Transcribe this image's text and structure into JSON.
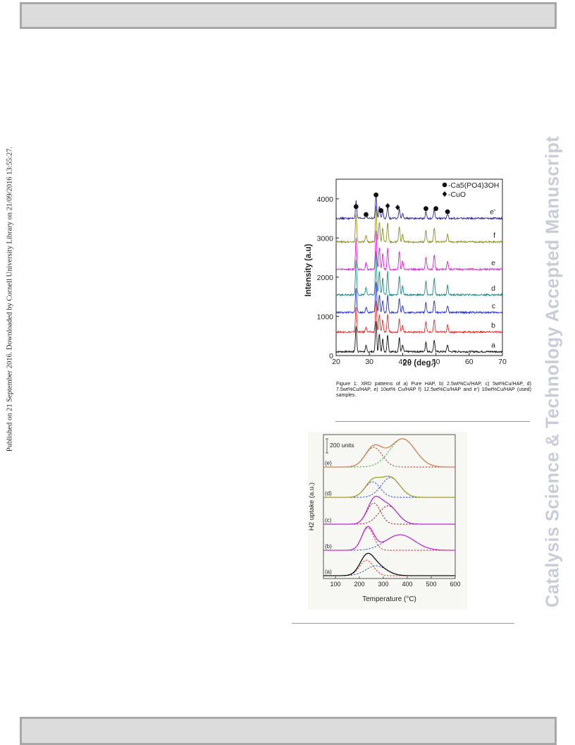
{
  "side_note": "Published on 21 September 2016. Downloaded by Cornell University Library on 21/09/2016 13:55:27.",
  "watermark": "Catalysis Science & Technology Accepted Manuscript",
  "figure1": {
    "caption": "Figure 1: XRD patterns of a) Pure HAP, b) 2.5wt%Cu/HAP, c) 5wt%Cu/HAP, d) 7.5wt%Cu/HAP, e) 10wt% Cu/HAP f) 12.5wt%Cu/HAP and e') 10wt%Cu/HAP (used) samples.",
    "legend": [
      "-Ca5(PO4)3OH",
      "-CuO"
    ]
  },
  "figure2": {
    "scale_label": "200 units"
  },
  "chart_data": [
    {
      "type": "line",
      "xlabel": "2θ (deg.)",
      "ylabel": "Intensity (a.u)",
      "xlim": [
        20,
        70
      ],
      "ylim": [
        0,
        4500
      ],
      "xticks": [
        20,
        30,
        40,
        50,
        60,
        70
      ],
      "yticks": [
        0,
        1000,
        2000,
        3000,
        4000
      ],
      "peaks_2theta": [
        26,
        29,
        32,
        33,
        34,
        35.5,
        39,
        40,
        47,
        49.5,
        53.5
      ],
      "series": [
        {
          "name": "a",
          "color": "#111111",
          "baseline": 100,
          "peak_height": 800
        },
        {
          "name": "b",
          "color": "#e03030",
          "baseline": 600,
          "peak_height": 800
        },
        {
          "name": "c",
          "color": "#2030d0",
          "baseline": 1100,
          "peak_height": 800
        },
        {
          "name": "d",
          "color": "#1c8a84",
          "baseline": 1550,
          "peak_height": 1100
        },
        {
          "name": "e",
          "color": "#e020d8",
          "baseline": 2200,
          "peak_height": 1000
        },
        {
          "name": "f",
          "color": "#8f8f22",
          "baseline": 2900,
          "peak_height": 900
        },
        {
          "name": "e'",
          "color": "#27279a",
          "baseline": 3500,
          "peak_height": 550
        }
      ],
      "markers": {
        "hap": [
          [
            26,
            3800
          ],
          [
            29,
            3600
          ],
          [
            32,
            4100
          ],
          [
            33.5,
            3700
          ],
          [
            47,
            3750
          ],
          [
            50,
            3750
          ],
          [
            53.5,
            3670
          ]
        ],
        "cuo": [
          [
            35.5,
            3820
          ],
          [
            38.5,
            3780
          ]
        ]
      }
    },
    {
      "type": "line",
      "xlabel": "Temperature (°C)",
      "ylabel": "H2 uptake (a.u.)",
      "xlim": [
        50,
        600
      ],
      "xticks": [
        100,
        200,
        300,
        400,
        500,
        600
      ],
      "series": [
        {
          "name": "(a)",
          "curve_color": "#111111",
          "peaks": [
            {
              "center": 230,
              "width": 40,
              "height": 22,
              "color": "#e03030"
            },
            {
              "center": 270,
              "width": 60,
              "height": 14,
              "color": "#2040c0"
            }
          ]
        },
        {
          "name": "(b)",
          "curve_color": "#c030d0",
          "peaks": [
            {
              "center": 235,
              "width": 35,
              "height": 32,
              "color": "#c03030"
            },
            {
              "center": 370,
              "width": 85,
              "height": 22,
              "color": "#2040c0"
            }
          ]
        },
        {
          "name": "(c)",
          "curve_color": "#b030d0",
          "peaks": [
            {
              "center": 260,
              "width": 40,
              "height": 30,
              "color": "#8a2020"
            },
            {
              "center": 320,
              "width": 55,
              "height": 26,
              "color": "#8a2020"
            }
          ]
        },
        {
          "name": "(d)",
          "curve_color": "#a0a030",
          "peaks": [
            {
              "center": 255,
              "width": 45,
              "height": 22,
              "color": "#2040c0"
            },
            {
              "center": 330,
              "width": 55,
              "height": 28,
              "color": "#2040c0"
            }
          ]
        },
        {
          "name": "(e)",
          "curve_color": "#d08050",
          "peaks": [
            {
              "center": 260,
              "width": 50,
              "height": 28,
              "color": "#c03030"
            },
            {
              "center": 380,
              "width": 75,
              "height": 40,
              "color": "#30b030"
            }
          ]
        }
      ]
    }
  ]
}
